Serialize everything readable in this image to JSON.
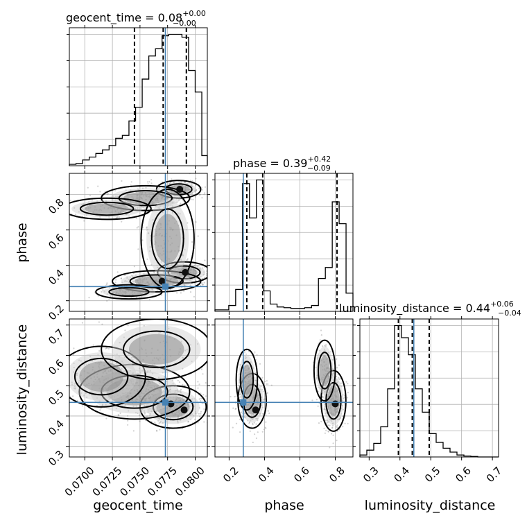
{
  "chart_data": {
    "type": "corner",
    "parameters": [
      "geocent_time",
      "phase",
      "luminosity_distance"
    ],
    "truths": {
      "geocent_time": 0.0773,
      "phase": 0.28,
      "luminosity_distance": 0.445
    },
    "colors": {
      "truth": "#4682b4",
      "line": "#000000",
      "grid": "#b0b0b0",
      "points": "#7f7f7f"
    },
    "grid": true,
    "marginals": [
      {
        "param": "geocent_time",
        "title": {
          "main": "geocent_time = 0.08",
          "sup": "+0.00",
          "sub": "−0.00"
        },
        "range": [
          0.0686,
          0.0811
        ],
        "quantiles": [
          0.0745,
          0.0771,
          0.0792
        ],
        "bin_edges": [
          0.0686,
          0.0692,
          0.0698,
          0.0704,
          0.071,
          0.0716,
          0.0722,
          0.0728,
          0.0734,
          0.074,
          0.0746,
          0.0752,
          0.0758,
          0.0764,
          0.077,
          0.0776,
          0.0782,
          0.0788,
          0.0794,
          0.08,
          0.0806,
          0.0811
        ],
        "counts": [
          2,
          3,
          8,
          12,
          17,
          22,
          28,
          38,
          42,
          62,
          81,
          120,
          152,
          162,
          180,
          182,
          182,
          178,
          132,
          102,
          14
        ]
      },
      {
        "param": "phase",
        "title": {
          "main": "phase = 0.39",
          "sup": "+0.42",
          "sub": "−0.09"
        },
        "range": [
          0.12,
          0.9
        ],
        "quantiles": [
          0.3,
          0.39,
          0.81
        ],
        "bin_edges": [
          0.12,
          0.159,
          0.198,
          0.237,
          0.276,
          0.315,
          0.354,
          0.393,
          0.432,
          0.471,
          0.51,
          0.549,
          0.588,
          0.627,
          0.666,
          0.705,
          0.744,
          0.783,
          0.822,
          0.861,
          0.9
        ],
        "counts": [
          2,
          2,
          8,
          30,
          175,
          128,
          180,
          28,
          10,
          6,
          5,
          4,
          4,
          5,
          8,
          45,
          60,
          150,
          120,
          25
        ]
      },
      {
        "param": "luminosity_distance",
        "title": {
          "main": "luminosity_distance = 0.44",
          "sup": "+0.06",
          "sub": "−0.04"
        },
        "range": [
          0.27,
          0.72
        ],
        "quantiles": [
          0.395,
          0.44,
          0.495
        ],
        "bin_edges": [
          0.27,
          0.2925,
          0.315,
          0.3375,
          0.36,
          0.3825,
          0.405,
          0.4275,
          0.45,
          0.4725,
          0.495,
          0.5175,
          0.54,
          0.5625,
          0.585,
          0.6075,
          0.63,
          0.6525,
          0.675,
          0.6975,
          0.72
        ],
        "counts": [
          4,
          14,
          28,
          62,
          140,
          270,
          245,
          210,
          140,
          92,
          48,
          30,
          18,
          10,
          4,
          2,
          1,
          0,
          0,
          0
        ]
      }
    ],
    "joint": [
      {
        "x": "geocent_time",
        "y": "phase",
        "xlim": [
          0.0686,
          0.0811
        ],
        "ylim": [
          0.14,
          0.92
        ],
        "clouds": [
          {
            "cx": 0.0785,
            "cy": 0.83,
            "sx": 0.001,
            "sy": 0.025,
            "n": 220
          },
          {
            "cx": 0.0755,
            "cy": 0.78,
            "sx": 0.002,
            "sy": 0.035,
            "n": 200
          },
          {
            "cx": 0.072,
            "cy": 0.72,
            "sx": 0.002,
            "sy": 0.03,
            "n": 120
          },
          {
            "cx": 0.079,
            "cy": 0.36,
            "sx": 0.0012,
            "sy": 0.03,
            "n": 220
          },
          {
            "cx": 0.0765,
            "cy": 0.31,
            "sx": 0.002,
            "sy": 0.03,
            "n": 220
          },
          {
            "cx": 0.074,
            "cy": 0.25,
            "sx": 0.0015,
            "sy": 0.02,
            "n": 120
          },
          {
            "cx": 0.0775,
            "cy": 0.55,
            "sx": 0.0012,
            "sy": 0.14,
            "n": 160
          }
        ],
        "density_peaks": [
          [
            0.0786,
            0.83
          ],
          [
            0.0791,
            0.36
          ],
          [
            0.077,
            0.31
          ]
        ]
      },
      {
        "x": "geocent_time",
        "y": "luminosity_distance",
        "xlim": [
          0.0686,
          0.0811
        ],
        "ylim": [
          0.265,
          0.72
        ],
        "clouds": [
          {
            "cx": 0.078,
            "cy": 0.43,
            "sx": 0.0015,
            "sy": 0.035,
            "n": 320
          },
          {
            "cx": 0.0745,
            "cy": 0.48,
            "sx": 0.0025,
            "sy": 0.045,
            "n": 260
          },
          {
            "cx": 0.0715,
            "cy": 0.53,
            "sx": 0.002,
            "sy": 0.05,
            "n": 180
          },
          {
            "cx": 0.0765,
            "cy": 0.62,
            "sx": 0.0025,
            "sy": 0.05,
            "n": 80
          }
        ],
        "density_peaks": [
          [
            0.079,
            0.42
          ],
          [
            0.0778,
            0.44
          ]
        ]
      },
      {
        "x": "phase",
        "y": "luminosity_distance",
        "xlim": [
          0.12,
          0.9
        ],
        "ylim": [
          0.265,
          0.72
        ],
        "clouds": [
          {
            "cx": 0.33,
            "cy": 0.45,
            "sx": 0.04,
            "sy": 0.045,
            "n": 320
          },
          {
            "cx": 0.3,
            "cy": 0.52,
            "sx": 0.03,
            "sy": 0.05,
            "n": 120
          },
          {
            "cx": 0.79,
            "cy": 0.45,
            "sx": 0.035,
            "sy": 0.05,
            "n": 300
          },
          {
            "cx": 0.74,
            "cy": 0.55,
            "sx": 0.03,
            "sy": 0.05,
            "n": 100
          }
        ],
        "density_peaks": [
          [
            0.35,
            0.42
          ],
          [
            0.8,
            0.44
          ]
        ]
      }
    ],
    "axes": {
      "xlabels": [
        "geocent_time",
        "phase",
        "luminosity_distance"
      ],
      "ylabels": [
        "",
        "phase",
        "luminosity_distance"
      ],
      "geocent_time_ticks": [
        "0.0700",
        "0.0725",
        "0.0750",
        "0.0775",
        "0.0800"
      ],
      "phase_ticks": [
        "0.2",
        "0.4",
        "0.6",
        "0.8"
      ],
      "luminosity_distance_ticks": [
        "0.3",
        "0.4",
        "0.5",
        "0.6",
        "0.7"
      ]
    }
  }
}
